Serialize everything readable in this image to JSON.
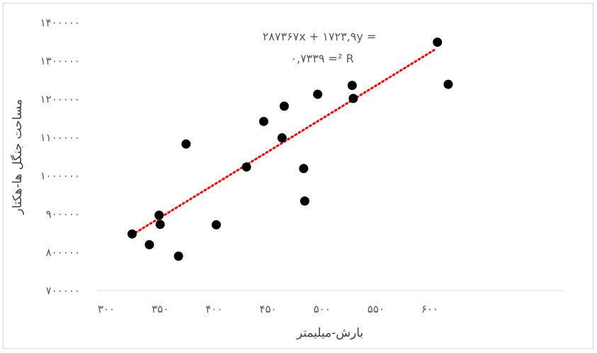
{
  "chart_data": {
    "type": "scatter",
    "xlabel": "بارش-میلیمتر",
    "ylabel": "مساحت جنگل ها-هکتار",
    "xlim": [
      300,
      630
    ],
    "ylim": [
      700000,
      1400000
    ],
    "x_ticks": [
      300,
      350,
      400,
      450,
      500,
      550,
      600
    ],
    "y_ticks": [
      700000,
      800000,
      900000,
      1000000,
      1100000,
      1200000,
      1300000,
      1400000
    ],
    "x_tick_labels": [
      "۳۰۰",
      "۳۵۰",
      "۴۰۰",
      "۴۵۰",
      "۵۰۰",
      "۵۵۰",
      "۶۰۰"
    ],
    "y_tick_labels": [
      "۷۰۰۰۰۰",
      "۸۰۰۰۰۰",
      "۹۰۰۰۰۰",
      "۱۰۰۰۰۰۰",
      "۱۱۰۰۰۰۰",
      "۱۲۰۰۰۰۰",
      "۱۳۰۰۰۰۰",
      "۱۴۰۰۰۰۰"
    ],
    "grid": false,
    "marker_color": "#000000",
    "trendline": {
      "type": "linear",
      "color": "#ff0000",
      "style": "dotted",
      "x_range": [
        324,
        604
      ],
      "slope": 1723.9,
      "intercept": 287367,
      "equation_line1": "۲۸۷۳۶۷x + ۱۷۲۳,۹y =",
      "equation_line2": "۰,۷۳۳۹ =² R"
    },
    "points": [
      {
        "x": 324,
        "y": 848000
      },
      {
        "x": 340,
        "y": 820000
      },
      {
        "x": 349,
        "y": 897000
      },
      {
        "x": 350,
        "y": 873000
      },
      {
        "x": 367,
        "y": 790000
      },
      {
        "x": 374,
        "y": 1083000
      },
      {
        "x": 402,
        "y": 872000
      },
      {
        "x": 430,
        "y": 1023000
      },
      {
        "x": 446,
        "y": 1142000
      },
      {
        "x": 463,
        "y": 1099000
      },
      {
        "x": 465,
        "y": 1182000
      },
      {
        "x": 483,
        "y": 1019000
      },
      {
        "x": 484,
        "y": 934000
      },
      {
        "x": 496,
        "y": 1213000
      },
      {
        "x": 528,
        "y": 1236000
      },
      {
        "x": 529,
        "y": 1202000
      },
      {
        "x": 607,
        "y": 1349000
      },
      {
        "x": 617,
        "y": 1239000
      }
    ]
  }
}
